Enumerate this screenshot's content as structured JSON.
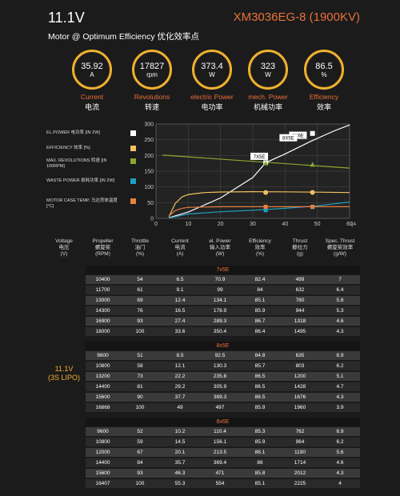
{
  "header": {
    "voltage": "11.1V",
    "model": "XM3036EG-8 (1900KV)",
    "subtitle": "Motor @ Optimum Efficiency  优化效率点"
  },
  "gauges": [
    {
      "value": "35.92",
      "unit": "A",
      "label": "Current",
      "label_cn": "电流"
    },
    {
      "value": "17827",
      "unit": "rpm",
      "label": "Revolutions",
      "label_cn": "转速"
    },
    {
      "value": "373.4",
      "unit": "W",
      "label": "electric Power",
      "label_cn": "电功率"
    },
    {
      "value": "323",
      "unit": "W",
      "label": "mech. Power",
      "label_cn": "机械功率"
    },
    {
      "value": "86.5",
      "unit": "%",
      "label": "Efficiency",
      "label_cn": "效率"
    }
  ],
  "colors": {
    "accent": "#e8703a",
    "gauge": "#f0b030",
    "power": "#ffffff",
    "efficiency": "#f0c060",
    "revolutions": "#8aa830",
    "waste": "#20a0c0",
    "temp": "#e88040"
  },
  "legend": [
    {
      "text": "EL.POWER 电功率 [IN 2W]",
      "color": "#ffffff"
    },
    {
      "text": "EFFICIENCY 效率 [%]",
      "color": "#f0c060"
    },
    {
      "text": "MAX. REVOLUTIONS 转速 [IN 100RPM]",
      "color": "#8aa830"
    },
    {
      "text": "WASTE POWER 损耗功率 [IN 2W]",
      "color": "#20a0c0"
    },
    {
      "text": "MOTOR CASE TEMP. 马达壳体温度 [°C]",
      "color": "#e88040"
    }
  ],
  "chart_data": {
    "type": "line",
    "xlim": [
      0,
      60
    ],
    "ylim": [
      0,
      300
    ],
    "xticks": [
      "0",
      "10",
      "20",
      "30",
      "40",
      "50",
      "60"
    ],
    "yticks": [
      "0",
      "50",
      "100",
      "150",
      "200",
      "250",
      "300"
    ],
    "xunit": "(A)",
    "annotations": [
      "8X6E",
      "8X5E",
      "7X5E"
    ],
    "series": [
      {
        "key": "power",
        "x": [
          4,
          10,
          20,
          30,
          34,
          40,
          48,
          55,
          60
        ],
        "y": [
          2,
          20,
          65,
          130,
          177,
          205,
          245,
          277,
          297
        ]
      },
      {
        "key": "efficiency",
        "x": [
          4,
          6,
          8,
          10,
          15,
          20,
          30,
          40,
          50,
          60
        ],
        "y": [
          5,
          48,
          68,
          76,
          82,
          84,
          85,
          84.5,
          83.5,
          82
        ]
      },
      {
        "key": "revolutions",
        "x": [
          2,
          60
        ],
        "y": [
          201,
          160
        ]
      },
      {
        "key": "waste",
        "x": [
          4,
          10,
          20,
          30,
          40,
          50,
          60
        ],
        "y": [
          1,
          14,
          21,
          26,
          32,
          40,
          52
        ]
      },
      {
        "key": "temp",
        "x": [
          4,
          6,
          8,
          10,
          20,
          60
        ],
        "y": [
          8,
          25,
          32,
          35,
          37,
          37
        ]
      }
    ],
    "markers": [
      {
        "key": "power",
        "x": [
          34,
          48.5
        ],
        "y": [
          177,
          270
        ]
      },
      {
        "key": "efficiency",
        "x": [
          34,
          48.5
        ],
        "y": [
          82.4,
          82.5
        ]
      },
      {
        "key": "revolutions",
        "x": [
          34,
          48.5
        ],
        "y": [
          177,
          172
        ]
      },
      {
        "key": "waste",
        "x": [
          34,
          48.5
        ],
        "y": [
          26,
          36
        ]
      },
      {
        "key": "temp",
        "x": [
          34,
          48.5
        ],
        "y": [
          37,
          37
        ]
      }
    ]
  },
  "table": {
    "headers": [
      "Voltage\n电压\n(V)",
      "Propeller\n螺旋桨\n(RPM)",
      "Throttle\n油门\n(%)",
      "Current\n电流\n(A)",
      "el. Power\n输入功率\n(W)",
      "Efficiency\n效率\n(%)",
      "Thrust\n静拉力\n(g)",
      "Spec. Thrust\n螺旋桨效率\n(g/W)"
    ],
    "voltage_label": "11.1V\n(3S LIPO)",
    "sections": [
      {
        "name": "7x5E",
        "rows": [
          [
            "10400",
            "54",
            "6.5",
            "70.9",
            "82.4",
            "499",
            "7"
          ],
          [
            "11700",
            "61",
            "9.1",
            "99",
            "84",
            "632",
            "6.4"
          ],
          [
            "13000",
            "69",
            "12.4",
            "134.1",
            "85.1",
            "780",
            "5.8"
          ],
          [
            "14300",
            "76",
            "16.5",
            "176.9",
            "85.9",
            "944",
            "5.3"
          ],
          [
            "16900",
            "93",
            "27.4",
            "289.3",
            "86.7",
            "1318",
            "4.6"
          ],
          [
            "18000",
            "100",
            "33.6",
            "350.4",
            "86.4",
            "1495",
            "4.3"
          ]
        ]
      },
      {
        "name": "8x5E",
        "rows": [
          [
            "9600",
            "51",
            "8.5",
            "92.5",
            "84.8",
            "635",
            "6.9"
          ],
          [
            "10800",
            "58",
            "12.1",
            "130.3",
            "85.7",
            "803",
            "6.2"
          ],
          [
            "13200",
            "73",
            "22.2",
            "235.8",
            "86.5",
            "1200",
            "5.1"
          ],
          [
            "14400",
            "81",
            "29.2",
            "305.9",
            "86.5",
            "1428",
            "4.7"
          ],
          [
            "15600",
            "90",
            "37.7",
            "389.3",
            "86.5",
            "1676",
            "4.3"
          ],
          [
            "16868",
            "100",
            "49",
            "497",
            "85.9",
            "1960",
            "3.9"
          ]
        ]
      },
      {
        "name": "8x6E",
        "rows": [
          [
            "9600",
            "52",
            "10.2",
            "110.4",
            "85.3",
            "762",
            "6.9"
          ],
          [
            "10800",
            "59",
            "14.5",
            "156.1",
            "85.9",
            "964",
            "6.2"
          ],
          [
            "12000",
            "67",
            "20.1",
            "213.5",
            "86.1",
            "1190",
            "5.6"
          ],
          [
            "14400",
            "84",
            "35.7",
            "369.4",
            "86",
            "1714",
            "4.6"
          ],
          [
            "15600",
            "93",
            "46.3",
            "471",
            "85.8",
            "2012",
            "4.3"
          ],
          [
            "16407",
            "100",
            "55.3",
            "554",
            "85.1",
            "2225",
            "4"
          ]
        ]
      }
    ]
  }
}
